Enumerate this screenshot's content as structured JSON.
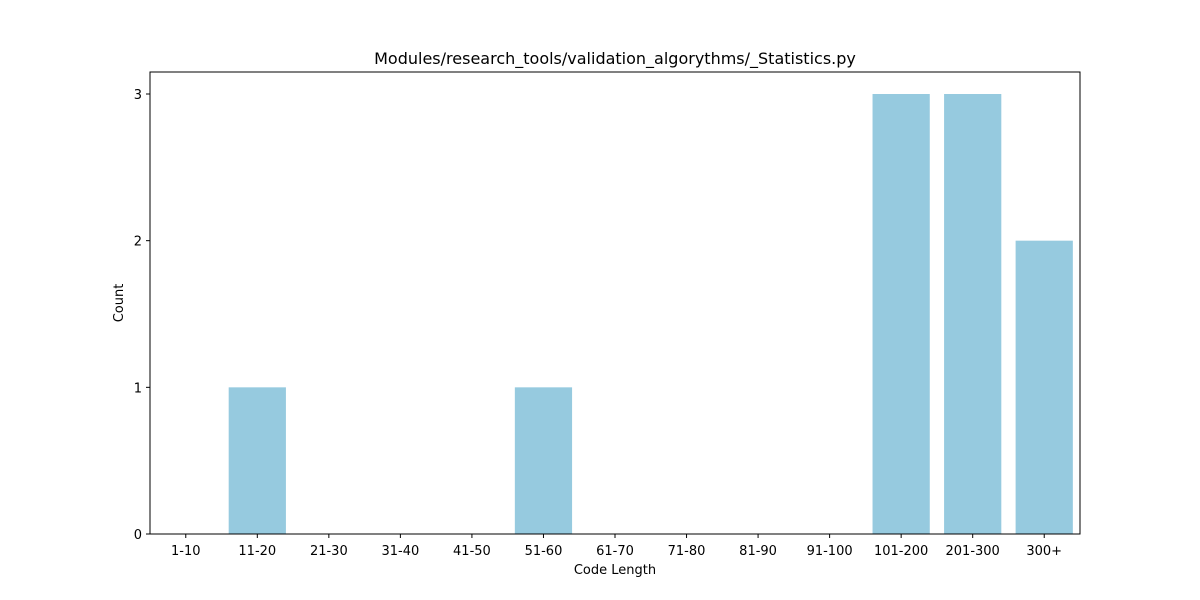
{
  "chart_data": {
    "type": "bar",
    "title": "Modules/research_tools/validation_algorythms/_Statistics.py",
    "xlabel": "Code Length",
    "ylabel": "Count",
    "categories": [
      "1-10",
      "11-20",
      "21-30",
      "31-40",
      "41-50",
      "51-60",
      "61-70",
      "71-80",
      "81-90",
      "91-100",
      "101-200",
      "201-300",
      "300+"
    ],
    "values": [
      0,
      1,
      0,
      0,
      0,
      1,
      0,
      0,
      0,
      0,
      3,
      3,
      2
    ],
    "yticks": [
      0,
      1,
      2,
      3
    ],
    "ylim": [
      0,
      3.15
    ],
    "bar_color": "#96cadf",
    "grid": false,
    "legend": "none"
  }
}
